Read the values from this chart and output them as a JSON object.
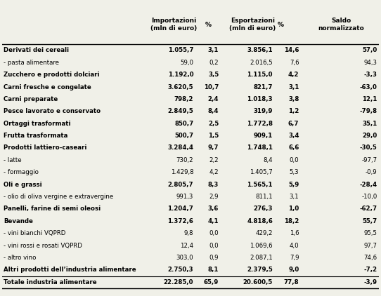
{
  "col_headers": [
    "Importazioni\n(mln di euro)",
    "%",
    "Esportazioni\n(mln di euro)",
    "%",
    "Saldo\nnormalizzato"
  ],
  "rows": [
    [
      "Derivati dei cereali",
      "1.055,7",
      "3,1",
      "3.856,1",
      "14,6",
      "57,0"
    ],
    [
      "- pasta alimentare",
      "59,0",
      "0,2",
      "2.016,5",
      "7,6",
      "94,3"
    ],
    [
      "Zucchero e prodotti dolciari",
      "1.192,0",
      "3,5",
      "1.115,0",
      "4,2",
      "-3,3"
    ],
    [
      "Carni fresche e congelate",
      "3.620,5",
      "10,7",
      "821,7",
      "3,1",
      "-63,0"
    ],
    [
      "Carni preparate",
      "798,2",
      "2,4",
      "1.018,3",
      "3,8",
      "12,1"
    ],
    [
      "Pesce lavorato e conservato",
      "2.849,5",
      "8,4",
      "319,9",
      "1,2",
      "-79,8"
    ],
    [
      "Ortaggi trasformati",
      "850,7",
      "2,5",
      "1.772,8",
      "6,7",
      "35,1"
    ],
    [
      "Frutta trasformata",
      "500,7",
      "1,5",
      "909,1",
      "3,4",
      "29,0"
    ],
    [
      "Prodotti lattiero-caseari",
      "3.284,4",
      "9,7",
      "1.748,1",
      "6,6",
      "-30,5"
    ],
    [
      "- latte",
      "730,2",
      "2,2",
      "8,4",
      "0,0",
      "-97,7"
    ],
    [
      "- formaggio",
      "1.429,8",
      "4,2",
      "1.405,7",
      "5,3",
      "-0,9"
    ],
    [
      "Oli e grassi",
      "2.805,7",
      "8,3",
      "1.565,1",
      "5,9",
      "-28,4"
    ],
    [
      "- olio di oliva vergine e extravergine",
      "991,3",
      "2,9",
      "811,1",
      "3,1",
      "-10,0"
    ],
    [
      "Panelli, farine di semi oleosi",
      "1.204,7",
      "3,6",
      "276,3",
      "1,0",
      "-62,7"
    ],
    [
      "Bevande",
      "1.372,6",
      "4,1",
      "4.818,6",
      "18,2",
      "55,7"
    ],
    [
      "- vini bianchi VQPRD",
      "9,8",
      "0,0",
      "429,2",
      "1,6",
      "95,5"
    ],
    [
      "- vini rossi e rosati VQPRD",
      "12,4",
      "0,0",
      "1.069,6",
      "4,0",
      "97,7"
    ],
    [
      "- altro vino",
      "303,0",
      "0,9",
      "2.087,1",
      "7,9",
      "74,6"
    ],
    [
      "Altri prodotti dell’industria alimentare",
      "2.750,3",
      "8,1",
      "2.379,5",
      "9,0",
      "-7,2"
    ],
    [
      "Totale industria alimentare",
      "22.285,0",
      "65,9",
      "20.600,5",
      "77,8",
      "-3,9"
    ]
  ],
  "normal_rows": [
    1,
    9,
    10,
    12,
    15,
    16,
    17
  ],
  "bg_color": "#f0f0e8",
  "font_size": 6.2,
  "header_font_size": 6.5
}
